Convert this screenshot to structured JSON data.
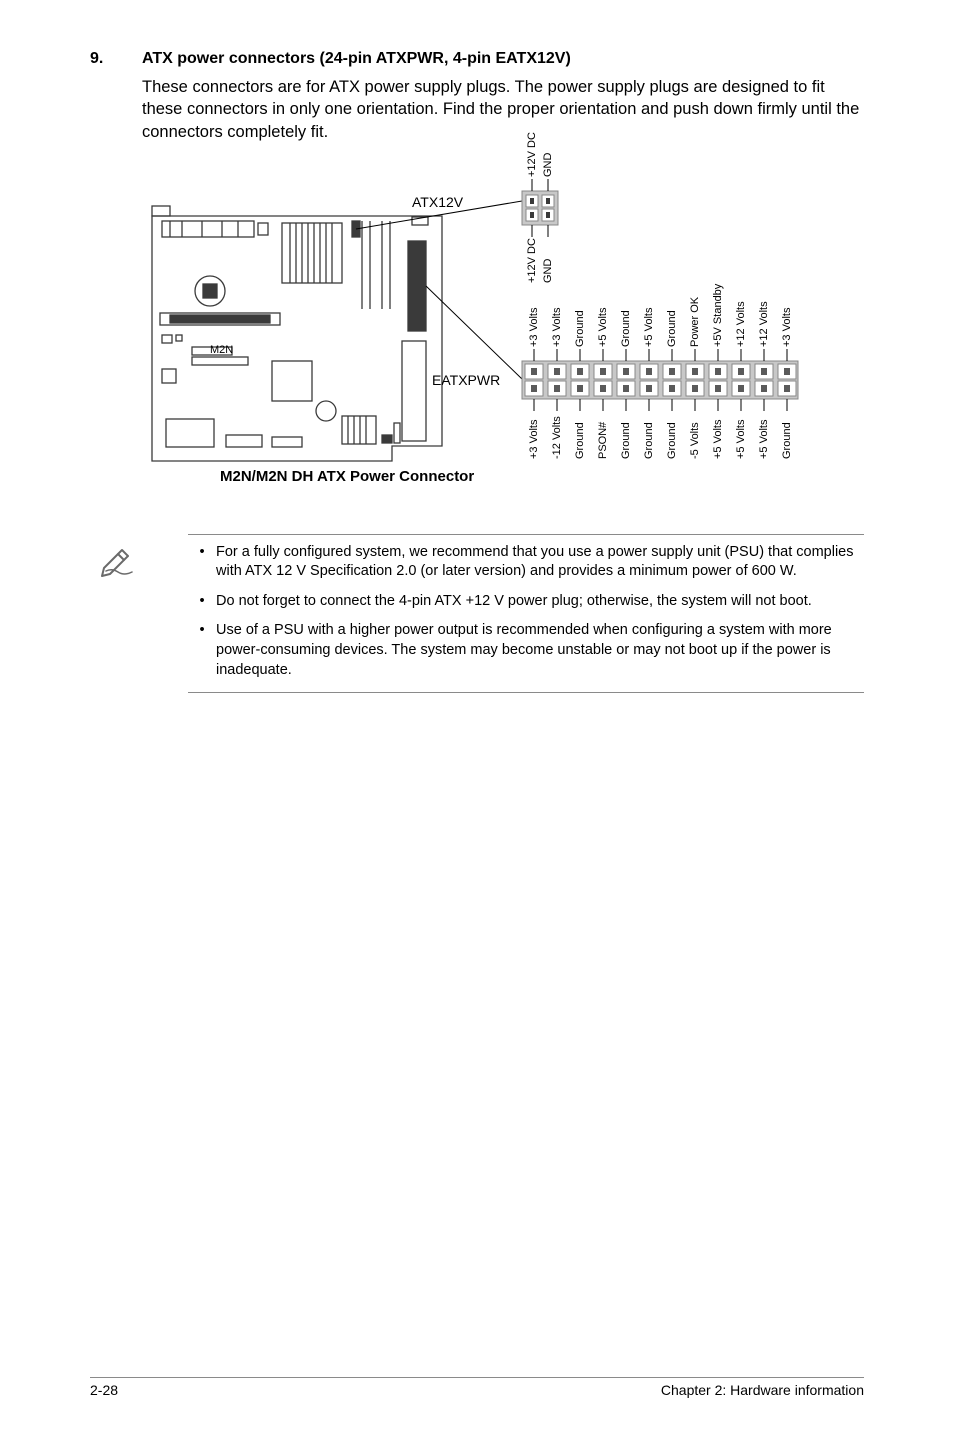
{
  "section": {
    "number": "9.",
    "title": "ATX power connectors (24-pin ATXPWR, 4-pin EATX12V)",
    "body": "These connectors are for ATX power supply plugs. The power supply plugs are designed to fit these connectors in only one orientation. Find the proper orientation and push down firmly until the connectors completely fit."
  },
  "diagram": {
    "atx12v_label": "ATX12V",
    "eatxpwr_label": "EATXPWR",
    "board_title": "M2N/M2N DH  ATX Power Connector",
    "atx12v_pins_top": [
      "+12V DC",
      "GND"
    ],
    "atx12v_pins_bottom": [
      "+12V DC",
      "GND"
    ],
    "eatxpwr_pins_top": [
      "+3 Volts",
      "+3 Volts",
      "Ground",
      "+5 Volts",
      "Ground",
      "+5 Volts",
      "Ground",
      "Power OK",
      "+5V Standby",
      "+12 Volts",
      "+12 Volts",
      "+3 Volts"
    ],
    "eatxpwr_pins_bottom": [
      "+3 Volts",
      "-12 Volts",
      "Ground",
      "PSON#",
      "Ground",
      "Ground",
      "Ground",
      "-5 Volts",
      "+5 Volts",
      "+5 Volts",
      "+5 Volts",
      "Ground"
    ],
    "colors": {
      "pin_block": "#c8c8c8",
      "pin_dark": "#8f8f8f",
      "board_line": "#3a3a3a",
      "text": "#000000"
    }
  },
  "notes": {
    "items": [
      "For a fully configured system, we recommend that you use a power supply unit (PSU) that complies with ATX 12 V Specification 2.0 (or later version) and provides a minimum power of 600 W.",
      "Do not forget to connect the 4-pin ATX +12 V power plug; otherwise, the system will not boot.",
      "Use of a PSU with a higher power output is recommended when configuring a system with more power-consuming devices. The system may become unstable or may not boot up if the power is inadequate."
    ]
  },
  "footer": {
    "left": "2-28",
    "right": "Chapter 2: Hardware information"
  }
}
